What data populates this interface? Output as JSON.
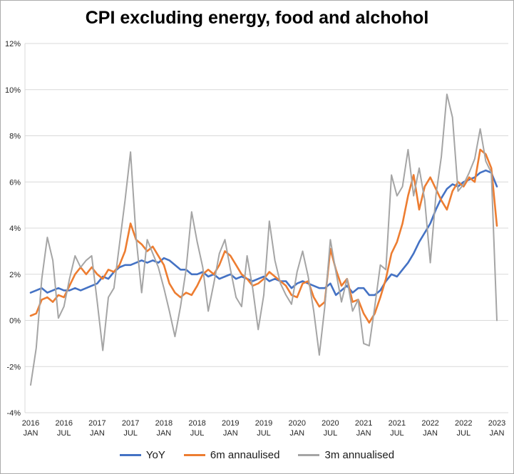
{
  "chart_data": {
    "type": "line",
    "title": "CPI excluding energy, food and alchohol",
    "x_unit": "month",
    "x_range": [
      "2016 JAN",
      "2023 JAN"
    ],
    "x_tick_every": 6,
    "x_tick_labels": [
      {
        "year": "2016",
        "month": "JAN"
      },
      {
        "year": "2016",
        "month": "JUL"
      },
      {
        "year": "2017",
        "month": "JAN"
      },
      {
        "year": "2017",
        "month": "JUL"
      },
      {
        "year": "2018",
        "month": "JAN"
      },
      {
        "year": "2018",
        "month": "JUL"
      },
      {
        "year": "2019",
        "month": "JAN"
      },
      {
        "year": "2019",
        "month": "JUL"
      },
      {
        "year": "2020",
        "month": "JAN"
      },
      {
        "year": "2020",
        "month": "JUL"
      },
      {
        "year": "2021",
        "month": "JAN"
      },
      {
        "year": "2021",
        "month": "JUL"
      },
      {
        "year": "2022",
        "month": "JAN"
      },
      {
        "year": "2022",
        "month": "JUL"
      },
      {
        "year": "2023",
        "month": "JAN"
      }
    ],
    "ylim": [
      -4,
      12
    ],
    "y_ticks": [
      12,
      10,
      8,
      6,
      4,
      2,
      0,
      -2,
      -4
    ],
    "y_tick_labels": [
      "12%",
      "10%",
      "8%",
      "6%",
      "4%",
      "2%",
      "0%",
      "-2%",
      "-4%"
    ],
    "grid": "horizontal",
    "legend_position": "bottom",
    "series": [
      {
        "name": "YoY",
        "color": "#4472C4",
        "values": [
          1.2,
          1.3,
          1.4,
          1.2,
          1.3,
          1.4,
          1.3,
          1.3,
          1.4,
          1.3,
          1.4,
          1.5,
          1.6,
          1.9,
          1.8,
          2.1,
          2.3,
          2.4,
          2.4,
          2.5,
          2.6,
          2.5,
          2.6,
          2.5,
          2.7,
          2.6,
          2.4,
          2.2,
          2.2,
          2.0,
          2.0,
          2.1,
          1.9,
          2.0,
          1.8,
          1.9,
          2.0,
          1.8,
          1.9,
          1.8,
          1.7,
          1.8,
          1.9,
          1.7,
          1.8,
          1.7,
          1.7,
          1.4,
          1.6,
          1.7,
          1.6,
          1.5,
          1.4,
          1.4,
          1.6,
          1.1,
          1.3,
          1.5,
          1.2,
          1.4,
          1.4,
          1.1,
          1.1,
          1.3,
          1.7,
          2.0,
          1.9,
          2.2,
          2.5,
          2.9,
          3.4,
          3.8,
          4.2,
          4.8,
          5.3,
          5.7,
          5.9,
          5.8,
          6.0,
          6.1,
          6.2,
          6.4,
          6.5,
          6.4,
          5.8
        ]
      },
      {
        "name": "6m annaulised",
        "color": "#ED7D31",
        "values": [
          0.2,
          0.3,
          0.9,
          1.0,
          0.8,
          1.1,
          1.0,
          1.5,
          2.0,
          2.3,
          2.0,
          2.3,
          2.0,
          1.8,
          2.2,
          2.1,
          2.4,
          3.0,
          4.2,
          3.5,
          3.3,
          3.0,
          3.2,
          2.8,
          2.4,
          1.6,
          1.2,
          1.0,
          1.2,
          1.1,
          1.5,
          2.0,
          2.2,
          2.0,
          2.4,
          3.0,
          2.8,
          2.4,
          2.0,
          1.8,
          1.5,
          1.6,
          1.8,
          2.1,
          1.9,
          1.7,
          1.5,
          1.1,
          1.0,
          1.6,
          1.7,
          1.0,
          0.6,
          0.8,
          3.1,
          2.2,
          1.5,
          1.8,
          0.8,
          0.9,
          0.3,
          -0.1,
          0.3,
          1.0,
          1.8,
          2.9,
          3.4,
          4.2,
          5.4,
          6.3,
          4.8,
          5.8,
          6.2,
          5.7,
          5.2,
          4.8,
          5.6,
          6.0,
          5.8,
          6.2,
          6.0,
          7.4,
          7.2,
          6.6,
          4.1
        ]
      },
      {
        "name": "3m annualised",
        "color": "#A5A5A5",
        "values": [
          -2.8,
          -1.2,
          1.8,
          3.6,
          2.6,
          0.1,
          0.6,
          1.8,
          2.8,
          2.3,
          2.6,
          2.8,
          0.8,
          -1.3,
          1.0,
          1.4,
          3.3,
          5.2,
          7.3,
          3.6,
          1.2,
          3.5,
          2.9,
          2.3,
          1.4,
          0.4,
          -0.7,
          0.6,
          2.2,
          4.7,
          3.4,
          2.3,
          0.4,
          1.6,
          2.9,
          3.5,
          2.2,
          1.0,
          0.6,
          2.8,
          1.4,
          -0.4,
          1.1,
          4.3,
          2.6,
          1.6,
          1.1,
          0.7,
          2.1,
          3.0,
          1.9,
          0.4,
          -1.5,
          0.6,
          3.5,
          2.1,
          0.8,
          1.8,
          0.4,
          0.9,
          -1.0,
          -1.1,
          0.6,
          2.4,
          2.2,
          6.3,
          5.4,
          5.8,
          7.4,
          5.4,
          6.6,
          5.2,
          2.5,
          5.4,
          7.1,
          9.8,
          8.8,
          5.6,
          5.9,
          6.4,
          7.0,
          8.3,
          6.9,
          6.4,
          0.0
        ]
      }
    ]
  }
}
